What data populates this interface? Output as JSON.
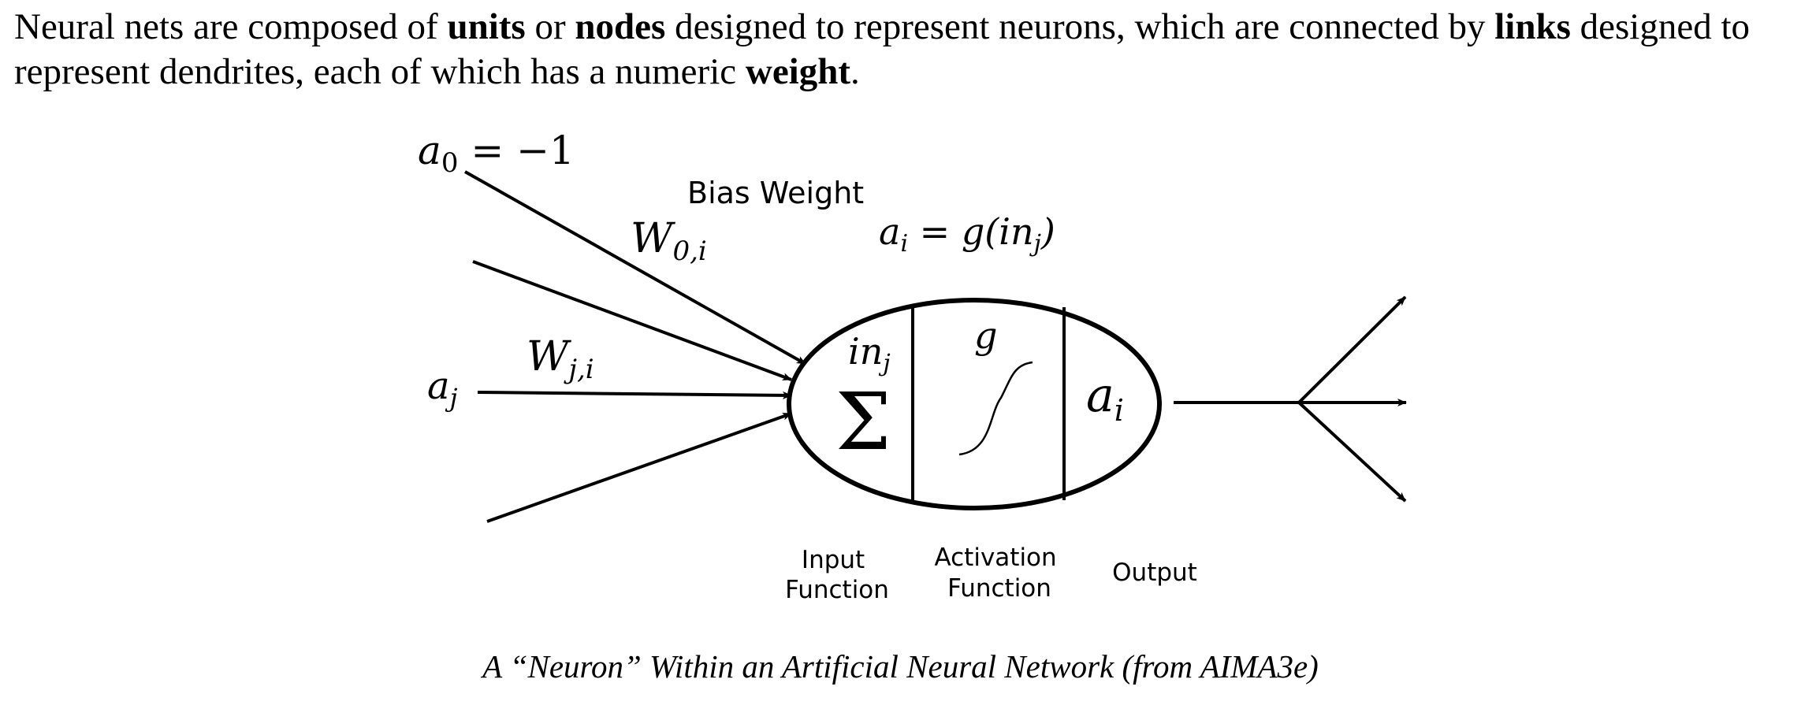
{
  "intro": {
    "p1": "Neural nets are composed of ",
    "b1": "units",
    "p2": " or ",
    "b2": "nodes",
    "p3": " designed to represent neurons, which are connected by ",
    "b3": "links",
    "p4": " designed to represent dendrites, each of which has a numeric ",
    "b4": "weight",
    "p5": "."
  },
  "diagram": {
    "a0": {
      "base": "a",
      "sub": "0",
      "rest": " = −1"
    },
    "bias_label": "Bias Weight",
    "w0i": {
      "base": "W",
      "sub": "0,i"
    },
    "output_eq": {
      "a": "a",
      "a_sub": "i",
      "mid": " = g(in",
      "in_sub": "j",
      "close": ")"
    },
    "wji": {
      "base": "W",
      "sub": "j,i"
    },
    "aj": {
      "base": "a",
      "sub": "j"
    },
    "inj": {
      "base": "in",
      "sub": "j"
    },
    "sigma": "Σ",
    "g": "g",
    "ai": {
      "base": "a",
      "sub": "i"
    },
    "labels": {
      "input_1": "Input",
      "input_2": "Function",
      "activation_1": "Activation",
      "activation_2": "Function",
      "output": "Output"
    }
  },
  "caption": "A “Neuron” Within an Artificial Neural Network (from AIMA3e)"
}
